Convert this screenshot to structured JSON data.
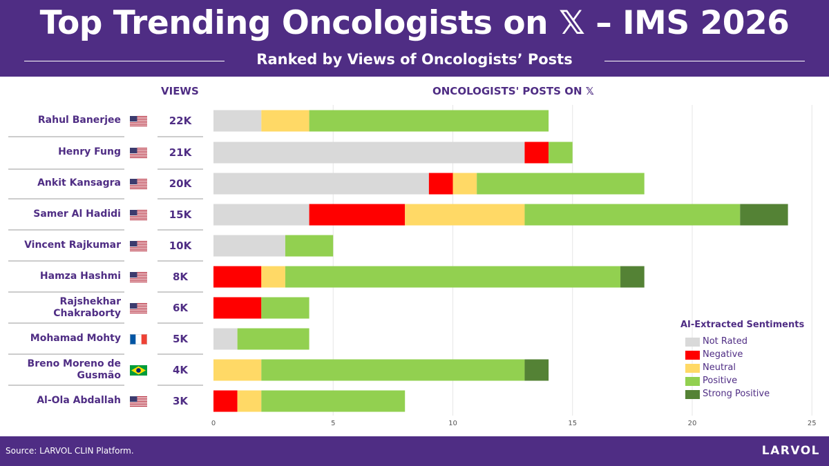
{
  "header": {
    "title": "Top Trending Oncologists on 𝕏 – IMS 2026",
    "subtitle": "Ranked by Views of Oncologists’ Posts"
  },
  "columns": {
    "views_header": "VIEWS",
    "chart_header": "ONCOLOGISTS' POSTS ON 𝕏"
  },
  "colors": {
    "brand": "#4f2d84",
    "not_rated": "#d9d9d9",
    "negative": "#ff0000",
    "neutral": "#ffd966",
    "positive": "#92d050",
    "strong_positive": "#548235"
  },
  "rows": [
    {
      "name": "Rahul Banerjee",
      "flag": "us",
      "views": "22K"
    },
    {
      "name": "Henry Fung",
      "flag": "us",
      "views": "21K"
    },
    {
      "name": "Ankit Kansagra",
      "flag": "us",
      "views": "20K"
    },
    {
      "name": "Samer Al Hadidi",
      "flag": "us",
      "views": "15K"
    },
    {
      "name": "Vincent Rajkumar",
      "flag": "us",
      "views": "10K"
    },
    {
      "name": "Hamza Hashmi",
      "flag": "us",
      "views": "8K"
    },
    {
      "name": "Rajshekhar Chakraborty",
      "flag": "us",
      "views": "6K"
    },
    {
      "name": "Mohamad Mohty",
      "flag": "fr",
      "views": "5K"
    },
    {
      "name": "Breno Moreno de Gusmão",
      "flag": "br",
      "views": "4K"
    },
    {
      "name": "Al-Ola Abdallah",
      "flag": "us",
      "views": "3K"
    }
  ],
  "legend": {
    "title": "AI-Extracted Sentiments",
    "items": [
      "Not Rated",
      "Negative",
      "Neutral",
      "Positive",
      "Strong Positive"
    ]
  },
  "footer": {
    "source": "Source: LARVOL CLIN Platform.",
    "brand": "LARVOL"
  },
  "chart_data": {
    "type": "bar",
    "orientation": "horizontal",
    "stacked": true,
    "title": "ONCOLOGISTS' POSTS ON 𝕏",
    "categories": [
      "Rahul Banerjee",
      "Henry Fung",
      "Ankit Kansagra",
      "Samer Al Hadidi",
      "Vincent Rajkumar",
      "Hamza Hashmi",
      "Rajshekhar Chakraborty",
      "Mohamad Mohty",
      "Breno Moreno de Gusmão",
      "Al-Ola Abdallah"
    ],
    "series": [
      {
        "name": "Not Rated",
        "color": "#d9d9d9",
        "values": [
          2,
          13,
          9,
          4,
          3,
          0,
          0,
          1,
          0,
          0
        ]
      },
      {
        "name": "Negative",
        "color": "#ff0000",
        "values": [
          0,
          1,
          1,
          4,
          0,
          2,
          2,
          0,
          0,
          1
        ]
      },
      {
        "name": "Neutral",
        "color": "#ffd966",
        "values": [
          2,
          0,
          1,
          5,
          0,
          1,
          0,
          0,
          2,
          1
        ]
      },
      {
        "name": "Positive",
        "color": "#92d050",
        "values": [
          10,
          1,
          7,
          9,
          2,
          14,
          2,
          3,
          11,
          6
        ]
      },
      {
        "name": "Strong Positive",
        "color": "#548235",
        "values": [
          0,
          0,
          0,
          2,
          0,
          1,
          0,
          0,
          1,
          0
        ]
      }
    ],
    "xlim": [
      0,
      25
    ],
    "xticks": [
      0,
      5,
      10,
      15,
      20,
      25
    ],
    "grid": true,
    "legend_position": "bottom-right"
  }
}
